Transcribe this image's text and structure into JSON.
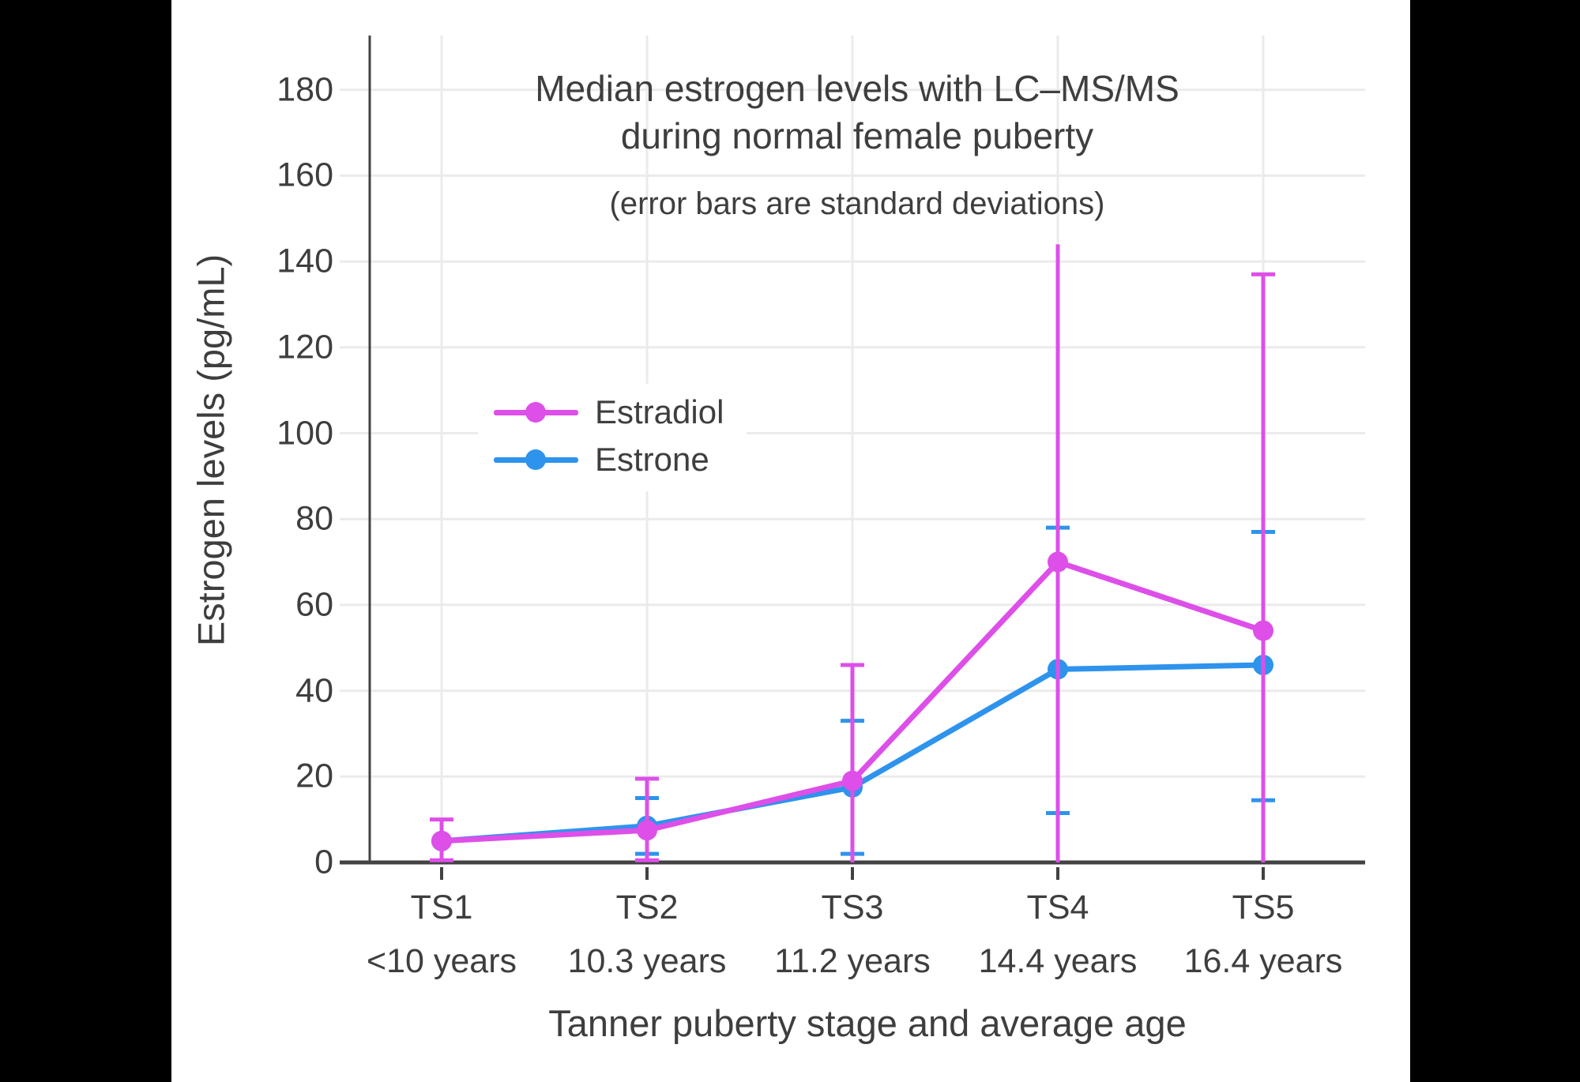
{
  "canvas": {
    "background": "#000000",
    "plot_background": "#ffffff"
  },
  "colors": {
    "text": "#3E3E3E",
    "axis": "#424242",
    "grid": "#EBEBEB",
    "estradiol": "#DD4FE8",
    "estrone": "#2E93EC"
  },
  "chart_data": {
    "type": "line",
    "title_lines": [
      "Median estrogen levels with LC–MS/MS",
      "during normal female puberty"
    ],
    "subtitle": "(error bars are standard deviations)",
    "xlabel": "Tanner puberty stage and average age",
    "ylabel": "Estrogen levels (pg/mL)",
    "categories": [
      "TS1",
      "TS2",
      "TS3",
      "TS4",
      "TS5"
    ],
    "category_ages": [
      "<10 years",
      "10.3 years",
      "11.2 years",
      "14.4 years",
      "16.4 years"
    ],
    "ylim": [
      0,
      190
    ],
    "yticks": [
      0,
      20,
      40,
      60,
      80,
      100,
      120,
      140,
      160,
      180
    ],
    "grid": true,
    "legend_position": "inside-upper-left",
    "legend_items": [
      "Estradiol",
      "Estrone"
    ],
    "series": [
      {
        "name": "Estrone",
        "color": "#2E93EC",
        "values": [
          5,
          8.5,
          17.5,
          45,
          46
        ],
        "error_low": [
          null,
          2,
          2,
          11.5,
          14.5
        ],
        "error_high": [
          null,
          15,
          33,
          78,
          77
        ],
        "cap_low": [
          false,
          true,
          true,
          true,
          true
        ],
        "cap_high": [
          false,
          true,
          true,
          true,
          true
        ]
      },
      {
        "name": "Estradiol",
        "color": "#DD4FE8",
        "values": [
          5,
          7.5,
          19,
          70,
          54
        ],
        "error_low": [
          0.5,
          0.5,
          0,
          0,
          0
        ],
        "error_high": [
          10,
          19.5,
          46,
          144,
          137
        ],
        "cap_low": [
          true,
          true,
          false,
          false,
          false
        ],
        "cap_high": [
          true,
          true,
          true,
          false,
          true
        ]
      }
    ]
  }
}
